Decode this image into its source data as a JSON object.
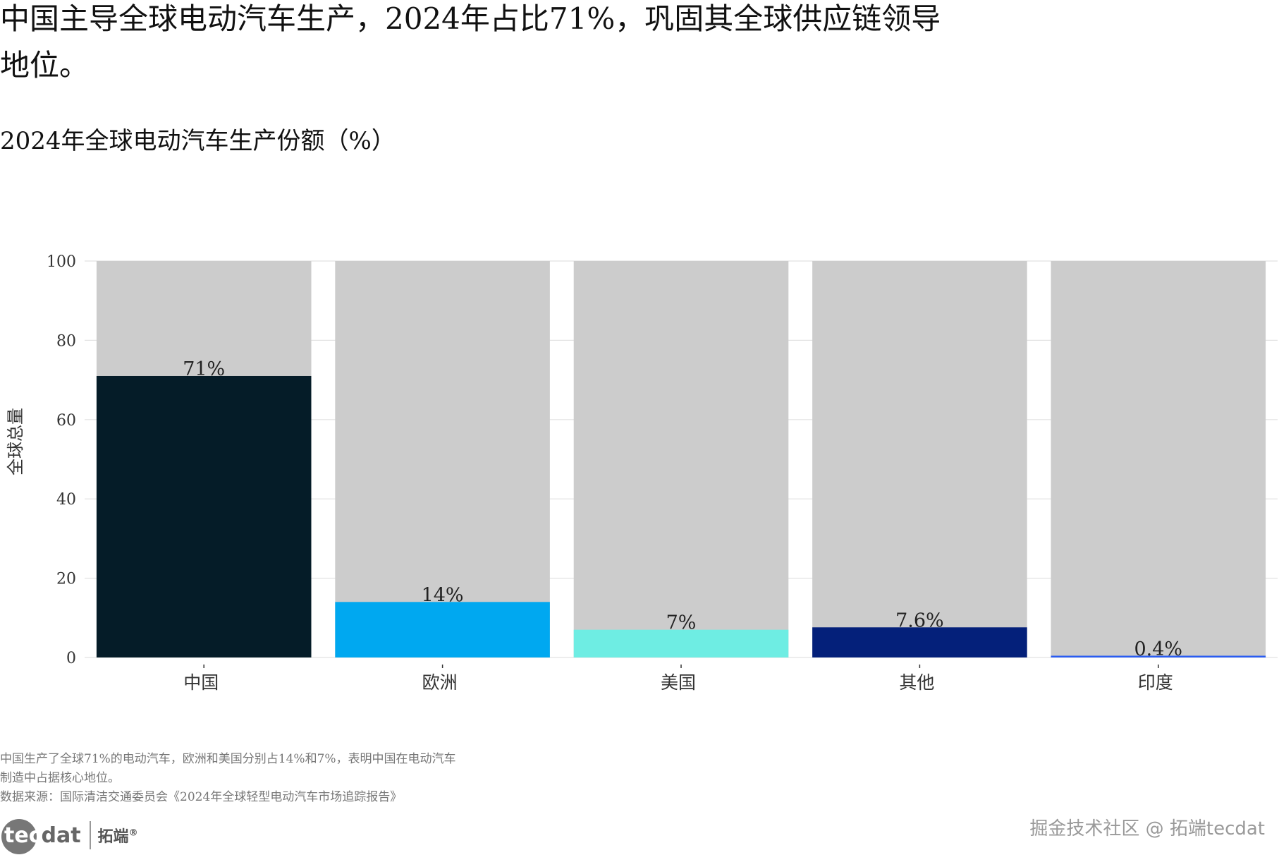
{
  "headline": "中国主导全球电动汽车生产，2024年占比71%，巩固其全球供应链领导地位。",
  "subtitle": "2024年全球电动汽车生产份额（%）",
  "caption": {
    "line1": "中国生产了全球71%的电动汽车，欧洲和美国分别占14%和7%，表明中国在电动汽车制造中占据核心地位。",
    "source": "数据来源：国际清洁交通委员会《2024年全球轻型电动汽车市场追踪报告》"
  },
  "logo": {
    "mark_a": "tec",
    "mark_b": "dat",
    "cn": "拓端",
    "reg": "®"
  },
  "watermark": "掘金技术社区 @ 拓端tecdat",
  "chart_data": {
    "type": "bar",
    "title": "2024年全球电动汽车生产份额（%）",
    "xlabel": "",
    "ylabel": "全球总量",
    "ylim": [
      0,
      100
    ],
    "yticks": [
      0,
      20,
      40,
      60,
      80,
      100
    ],
    "grid": true,
    "background_total": 100,
    "categories": [
      "中国",
      "欧洲",
      "美国",
      "其他",
      "印度"
    ],
    "values": [
      71,
      14,
      7,
      7.6,
      0.4
    ],
    "data_labels": [
      "71%",
      "14%",
      "7%",
      "7.6%",
      "0.4%"
    ],
    "colors": [
      "#051c28",
      "#00a8f0",
      "#6eede3",
      "#04207a",
      "#2a5cf2"
    ],
    "background_color": "#cccccc"
  }
}
